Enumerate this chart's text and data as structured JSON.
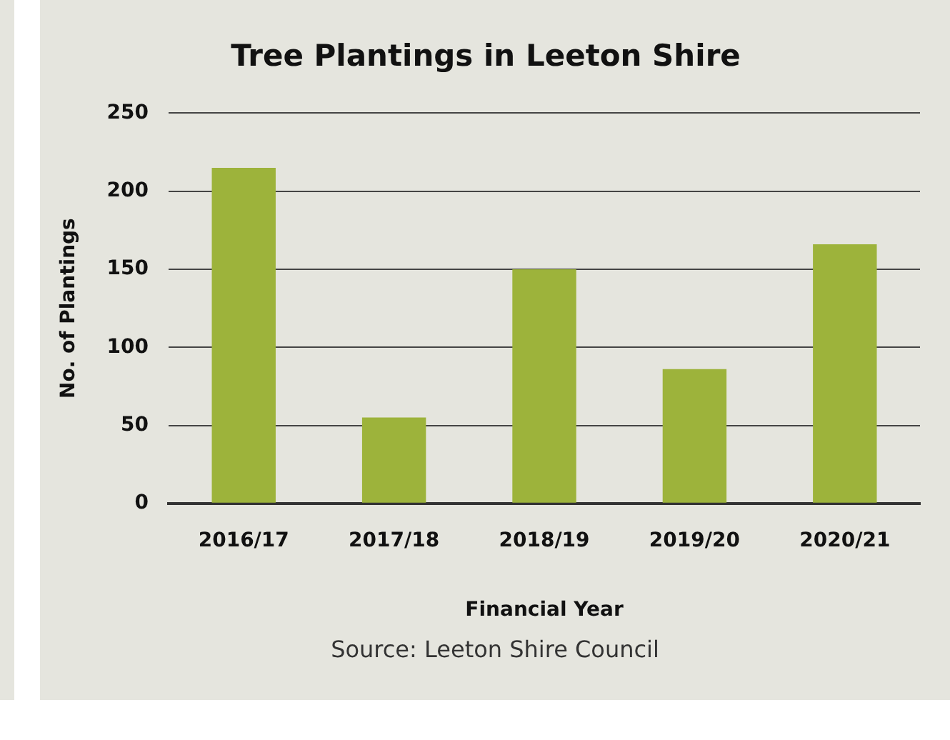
{
  "chart_data": {
    "type": "bar",
    "title": "Tree Plantings in Leeton Shire",
    "xlabel": "Financial Year",
    "ylabel": "No. of Plantings",
    "categories": [
      "2016/17",
      "2017/18",
      "2018/19",
      "2019/20",
      "2020/21"
    ],
    "values": [
      215,
      55,
      150,
      86,
      166
    ],
    "color": "#9db33b",
    "ylim": [
      0,
      250
    ],
    "yticks": [
      0,
      50,
      100,
      150,
      200,
      250
    ],
    "grid": "y",
    "annotations": [
      "Source: Leeton Shire Council"
    ]
  }
}
